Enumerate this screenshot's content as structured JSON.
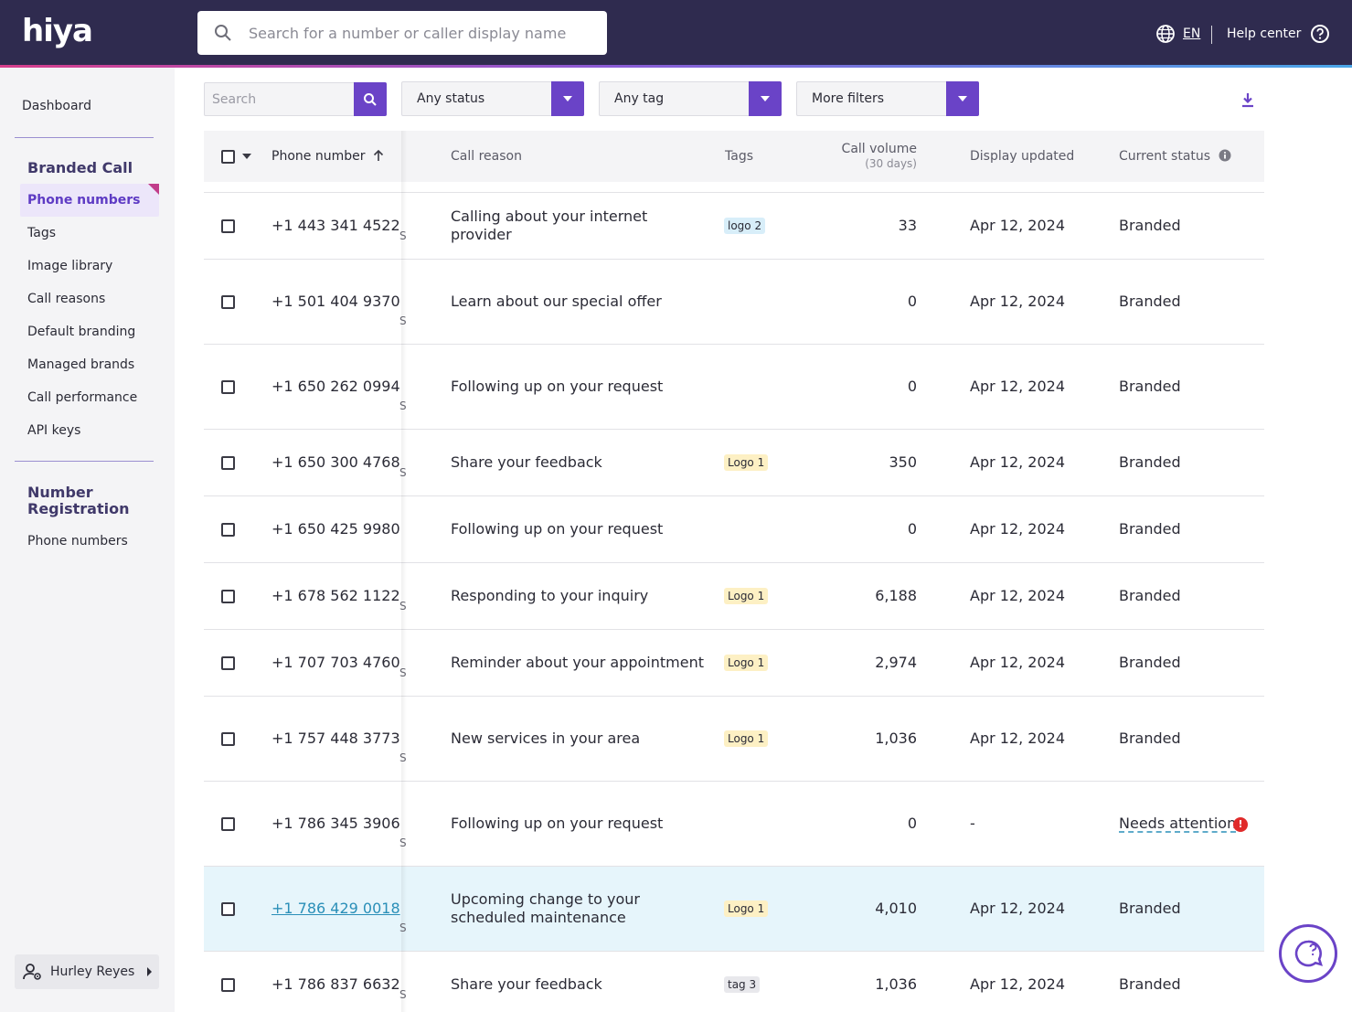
{
  "app": {
    "logo_text": "hiya"
  },
  "top_search": {
    "placeholder": "Search for a number or caller display name"
  },
  "header": {
    "language": "EN",
    "help_label": "Help center"
  },
  "sidebar": {
    "dashboard": "Dashboard",
    "branded_call_title": "Branded Call",
    "branded_items": [
      "Phone numbers",
      "Tags",
      "Image library",
      "Call reasons",
      "Default branding",
      "Managed brands",
      "Call performance",
      "API keys"
    ],
    "number_registration_title_1": "Number",
    "number_registration_title_2": "Registration",
    "registration_items": [
      "Phone numbers"
    ],
    "user_name": "Hurley Reyes"
  },
  "filters": {
    "search_placeholder": "Search",
    "status": "Any status",
    "tag": "Any tag",
    "more": "More filters"
  },
  "table": {
    "headers": {
      "phone": "Phone number",
      "reason": "Call reason",
      "tags": "Tags",
      "volume": "Call volume",
      "volume_sub": "(30 days)",
      "updated": "Display updated",
      "status": "Current status"
    },
    "overflow_mark": "S",
    "rows": [
      {
        "phone": "+1 443 341 4522",
        "reason": "Calling about your internet provider",
        "tag": "logo 2",
        "tag_color": "blue",
        "volume": "33",
        "updated": "Apr 12, 2024",
        "status": "Branded"
      },
      {
        "phone": "+1 501 404 9370",
        "reason": "Learn about our special offer",
        "tag": "",
        "tag_color": "",
        "volume": "0",
        "updated": "Apr 12, 2024",
        "status": "Branded"
      },
      {
        "phone": "+1 650 262 0994",
        "reason": "Following up on your request",
        "tag": "",
        "tag_color": "",
        "volume": "0",
        "updated": "Apr 12, 2024",
        "status": "Branded"
      },
      {
        "phone": "+1 650 300 4768",
        "reason": "Share your feedback",
        "tag": "Logo 1",
        "tag_color": "yellow",
        "volume": "350",
        "updated": "Apr 12, 2024",
        "status": "Branded"
      },
      {
        "phone": "+1 650 425 9980",
        "reason": "Following up on your request",
        "tag": "",
        "tag_color": "",
        "volume": "0",
        "updated": "Apr 12, 2024",
        "status": "Branded"
      },
      {
        "phone": "+1 678 562 1122",
        "reason": "Responding to your inquiry",
        "tag": "Logo 1",
        "tag_color": "yellow",
        "volume": "6,188",
        "updated": "Apr 12, 2024",
        "status": "Branded"
      },
      {
        "phone": "+1 707 703 4760",
        "reason": "Reminder about your appointment",
        "tag": "Logo 1",
        "tag_color": "yellow",
        "volume": "2,974",
        "updated": "Apr 12, 2024",
        "status": "Branded"
      },
      {
        "phone": "+1 757 448 3773",
        "reason": "New services in your area",
        "tag": "Logo 1",
        "tag_color": "yellow",
        "volume": "1,036",
        "updated": "Apr 12, 2024",
        "status": "Branded"
      },
      {
        "phone": "+1 786 345 3906",
        "reason": "Following up on your request",
        "tag": "",
        "tag_color": "",
        "volume": "0",
        "updated": "-",
        "status": "Needs attention"
      },
      {
        "phone": "+1 786 429 0018",
        "reason": "Upcoming change to your scheduled maintenance",
        "tag": "Logo 1",
        "tag_color": "yellow",
        "volume": "4,010",
        "updated": "Apr 12, 2024",
        "status": "Branded"
      },
      {
        "phone": "+1 786 837 6632",
        "reason": "Share your feedback",
        "tag": "tag 3",
        "tag_color": "gray",
        "volume": "1,036",
        "updated": "Apr 12, 2024",
        "status": "Branded"
      }
    ]
  },
  "colors": {
    "accent": "#6a43c7",
    "topbar": "#2f2b4f",
    "link": "#2a8fb8",
    "alert": "#e02b2b"
  }
}
